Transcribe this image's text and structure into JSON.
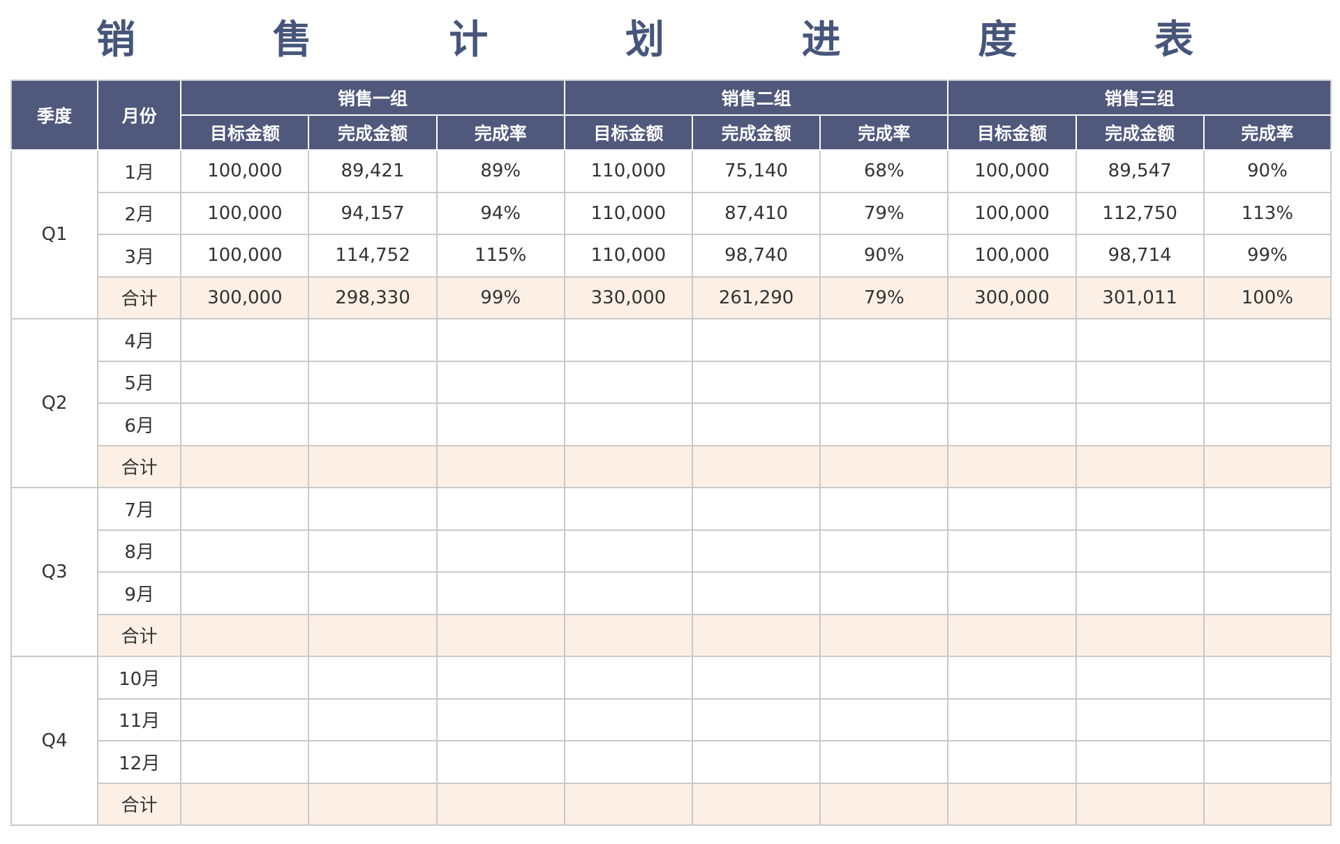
{
  "title_chars": [
    "销",
    "售",
    "计",
    "划",
    "进",
    "度",
    "表"
  ],
  "header": {
    "quarter": "季度",
    "month": "月份",
    "groups": [
      "销售一组",
      "销售二组",
      "销售三组"
    ],
    "subcols": [
      "目标金额",
      "完成金额",
      "完成率"
    ]
  },
  "quarters": [
    {
      "label": "Q1",
      "rows": [
        {
          "month": "1月",
          "cells": [
            "100,000",
            "89,421",
            "89%",
            "110,000",
            "75,140",
            "68%",
            "100,000",
            "89,547",
            "90%"
          ]
        },
        {
          "month": "2月",
          "cells": [
            "100,000",
            "94,157",
            "94%",
            "110,000",
            "87,410",
            "79%",
            "100,000",
            "112,750",
            "113%"
          ]
        },
        {
          "month": "3月",
          "cells": [
            "100,000",
            "114,752",
            "115%",
            "110,000",
            "98,740",
            "90%",
            "100,000",
            "98,714",
            "99%"
          ]
        },
        {
          "month": "合计",
          "cells": [
            "300,000",
            "298,330",
            "99%",
            "330,000",
            "261,290",
            "79%",
            "300,000",
            "301,011",
            "100%"
          ]
        }
      ]
    },
    {
      "label": "Q2",
      "rows": [
        {
          "month": "4月",
          "cells": [
            "",
            "",
            "",
            "",
            "",
            "",
            "",
            "",
            ""
          ]
        },
        {
          "month": "5月",
          "cells": [
            "",
            "",
            "",
            "",
            "",
            "",
            "",
            "",
            ""
          ]
        },
        {
          "month": "6月",
          "cells": [
            "",
            "",
            "",
            "",
            "",
            "",
            "",
            "",
            ""
          ]
        },
        {
          "month": "合计",
          "cells": [
            "",
            "",
            "",
            "",
            "",
            "",
            "",
            "",
            ""
          ]
        }
      ]
    },
    {
      "label": "Q3",
      "rows": [
        {
          "month": "7月",
          "cells": [
            "",
            "",
            "",
            "",
            "",
            "",
            "",
            "",
            ""
          ]
        },
        {
          "month": "8月",
          "cells": [
            "",
            "",
            "",
            "",
            "",
            "",
            "",
            "",
            ""
          ]
        },
        {
          "month": "9月",
          "cells": [
            "",
            "",
            "",
            "",
            "",
            "",
            "",
            "",
            ""
          ]
        },
        {
          "month": "合计",
          "cells": [
            "",
            "",
            "",
            "",
            "",
            "",
            "",
            "",
            ""
          ]
        }
      ]
    },
    {
      "label": "Q4",
      "rows": [
        {
          "month": "10月",
          "cells": [
            "",
            "",
            "",
            "",
            "",
            "",
            "",
            "",
            ""
          ]
        },
        {
          "month": "11月",
          "cells": [
            "",
            "",
            "",
            "",
            "",
            "",
            "",
            "",
            ""
          ]
        },
        {
          "month": "12月",
          "cells": [
            "",
            "",
            "",
            "",
            "",
            "",
            "",
            "",
            ""
          ]
        },
        {
          "month": "合计",
          "cells": [
            "",
            "",
            "",
            "",
            "",
            "",
            "",
            "",
            ""
          ]
        }
      ]
    }
  ],
  "colors": {
    "header_bg": "#50587c",
    "title": "#47557a",
    "subtotal_bg": "#fcefe5",
    "grid": "#c9c9c9"
  }
}
